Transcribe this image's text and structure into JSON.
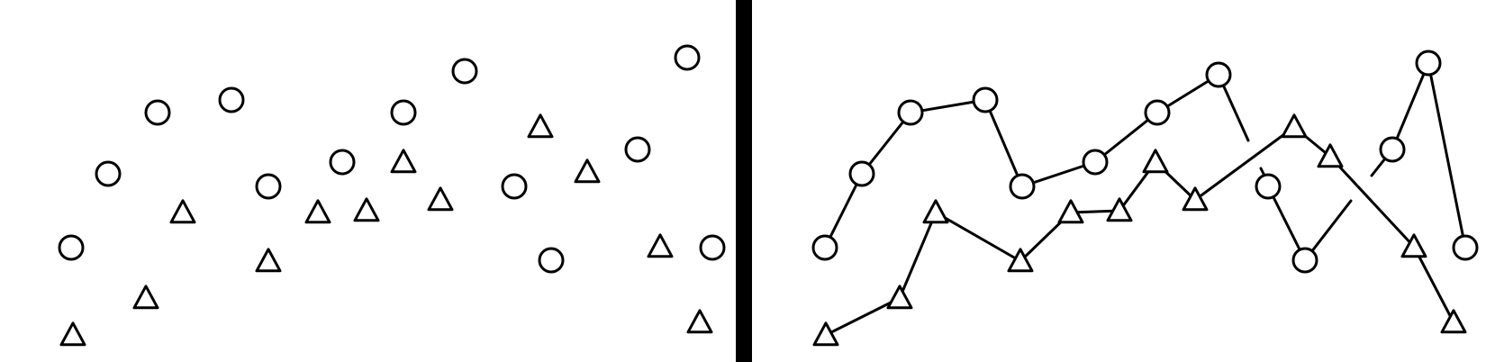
{
  "colors": {
    "background": "#ffffff",
    "stroke": "#000000",
    "divider": "#000000"
  },
  "panels": [
    {
      "id": "left",
      "shows_connections": false
    },
    {
      "id": "right",
      "shows_connections": true
    }
  ],
  "marker_types": [
    "circle",
    "triangle"
  ]
}
